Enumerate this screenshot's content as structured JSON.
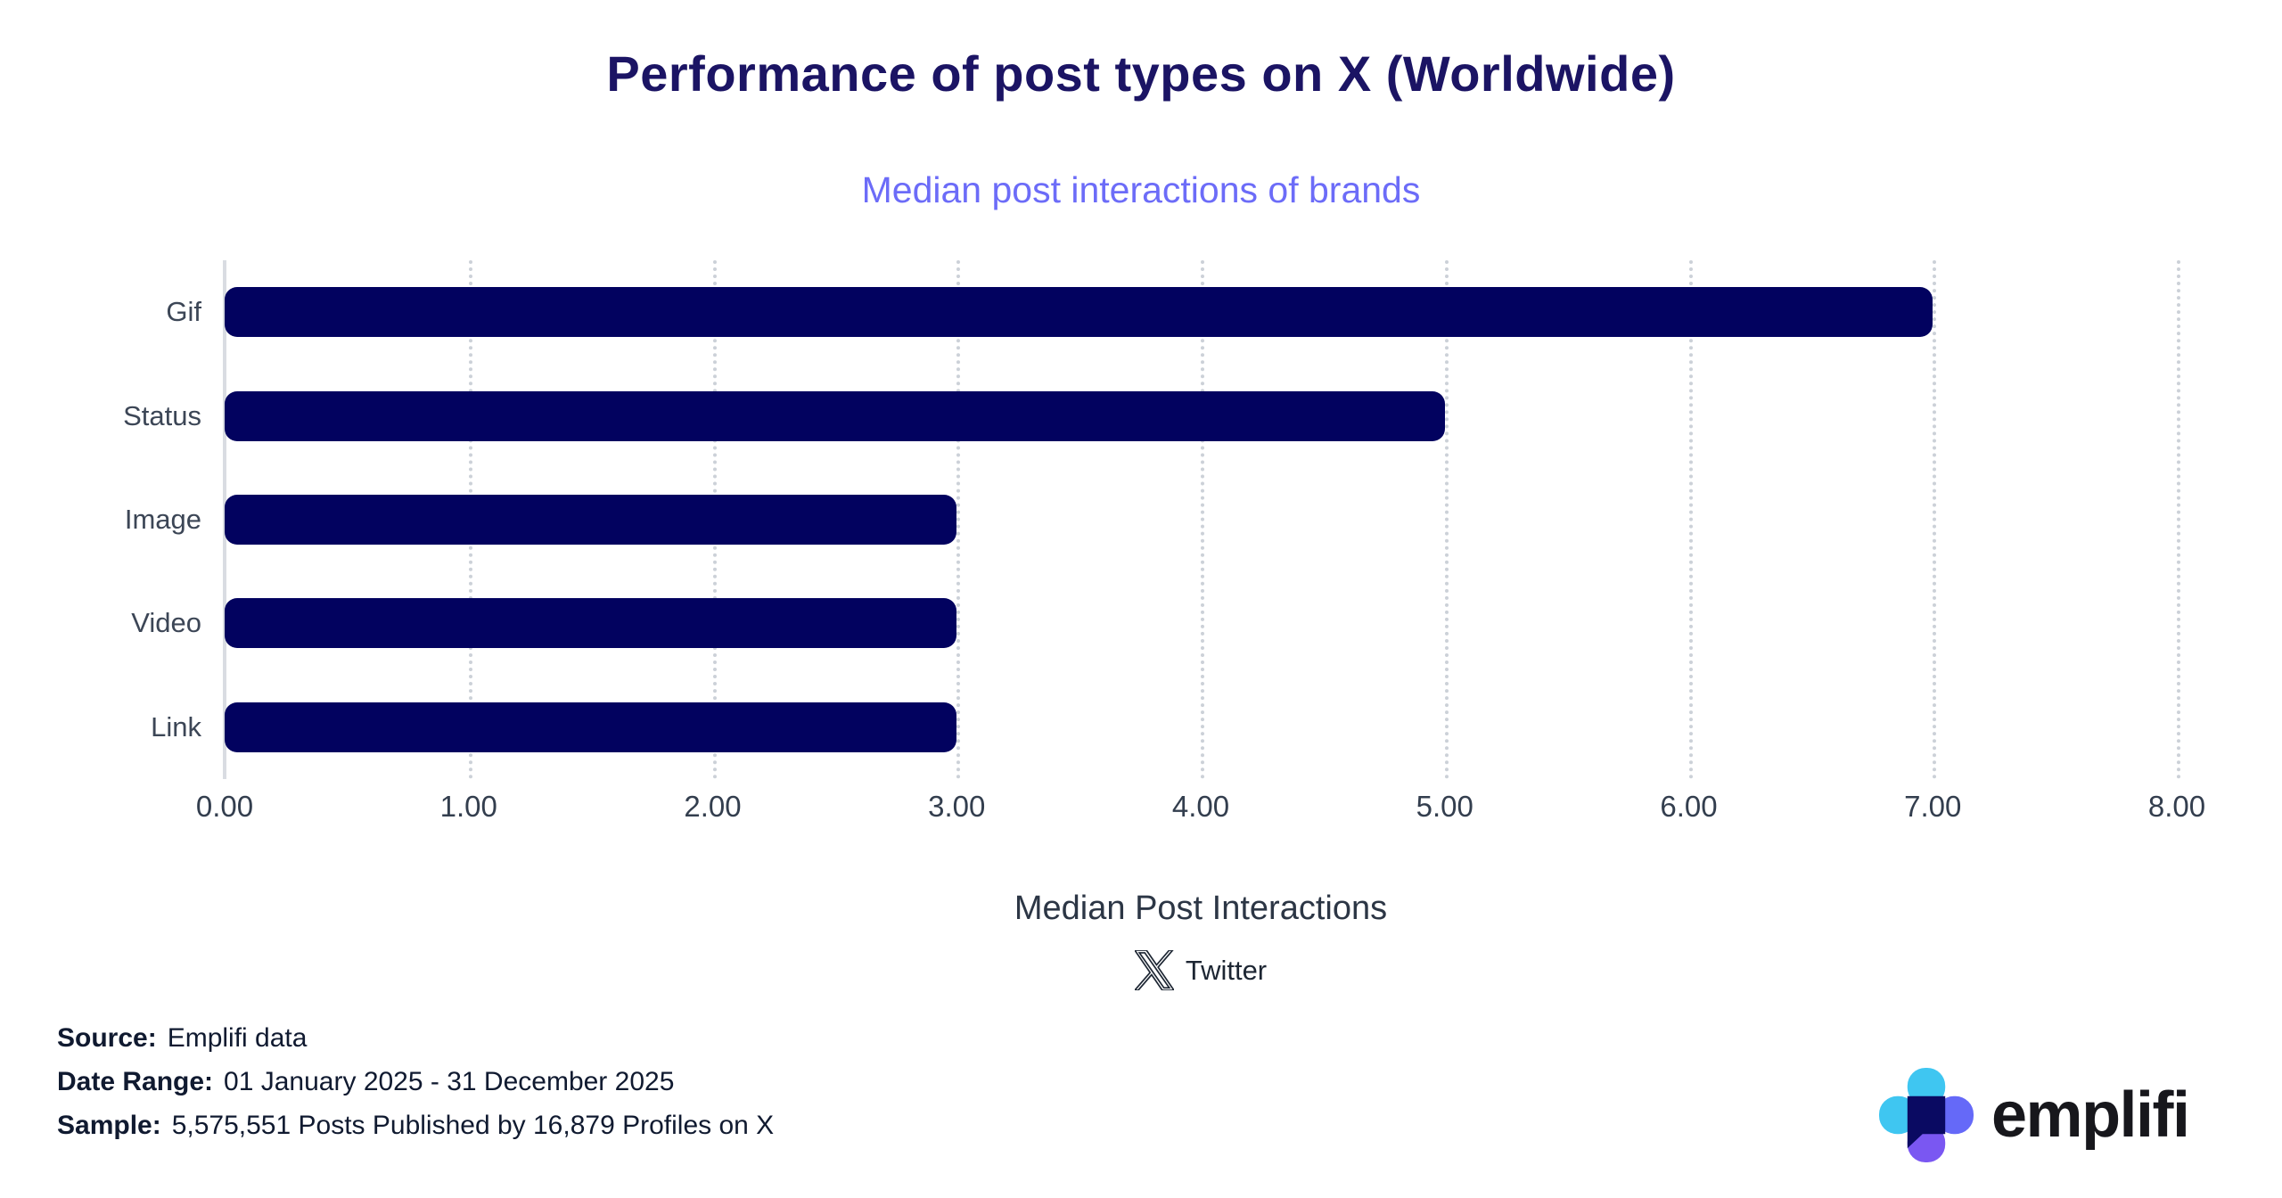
{
  "title": "Performance of post types on X (Worldwide)",
  "subtitle": "Median post interactions of brands",
  "chart_data": {
    "type": "bar",
    "orientation": "horizontal",
    "title": "Performance of post types on X (Worldwide)",
    "subtitle": "Median post interactions of brands",
    "categories": [
      "Gif",
      "Status",
      "Image",
      "Video",
      "Link"
    ],
    "values": [
      7.0,
      5.0,
      3.0,
      3.0,
      3.0
    ],
    "xlabel": "Median Post Interactions",
    "ylabel": "",
    "xlim": [
      0,
      8
    ],
    "x_ticks": [
      "0.00",
      "1.00",
      "2.00",
      "3.00",
      "4.00",
      "5.00",
      "6.00",
      "7.00",
      "8.00"
    ],
    "grid": "vertical dotted gridlines at every 1.00",
    "legend_position": "bottom center, below x-axis title",
    "bar_color": "#02025F"
  },
  "legend": {
    "icon": "x-logo",
    "label": "Twitter"
  },
  "footer": {
    "source_label": "Source:",
    "source_value": "Emplifi data",
    "date_range_label": "Date Range:",
    "date_range_value": "01 January 2025 - 31 December 2025",
    "sample_label": "Sample:",
    "sample_value": "5,575,551 Posts Published by 16,879 Profiles on X"
  },
  "branding": {
    "wordmark": "emplifi"
  },
  "colors": {
    "bar": "#02025F",
    "title": "#1B1464",
    "subtitle": "#6C6CF8",
    "axis_text": "#3C4656",
    "grid": "#CCD1D8",
    "logo_cyan": "#3FC6F1",
    "logo_periwinkle": "#6569F8",
    "logo_violet": "#7A57F2",
    "logo_navy": "#0A0A62"
  }
}
